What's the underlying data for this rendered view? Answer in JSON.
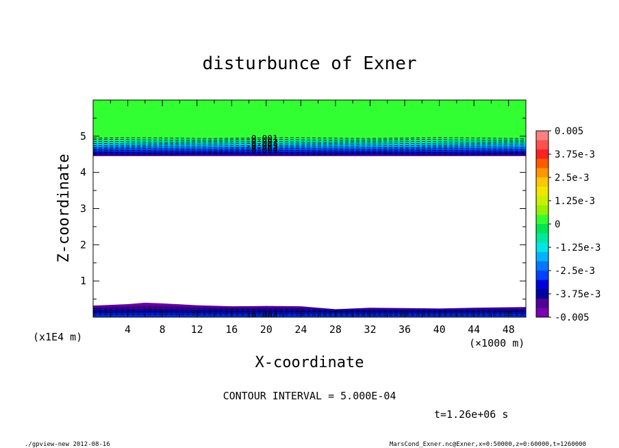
{
  "chart_data": {
    "type": "heatmap",
    "subtype": "filled-contour",
    "title": "disturbunce of Exner",
    "xlabel": "X-coordinate",
    "ylabel": "Z-coordinate",
    "x_unit": "(×1000 m)",
    "y_unit": "(x1E4 m)",
    "xlim": [
      0,
      50
    ],
    "ylim": [
      0,
      6
    ],
    "x_ticks": [
      4,
      8,
      12,
      16,
      20,
      24,
      28,
      32,
      36,
      40,
      44,
      48
    ],
    "y_ticks": [
      1,
      2,
      3,
      4,
      5
    ],
    "colorbar": {
      "range": [
        -0.005,
        0.005
      ],
      "tick_labels": [
        "0.005",
        "3.75e-3",
        "2.5e-3",
        "1.25e-3",
        "0",
        "-1.25e-3",
        "-2.5e-3",
        "-3.75e-3",
        "-0.005"
      ],
      "colors": [
        "#ff8080",
        "#ff5050",
        "#ff2020",
        "#ff5a00",
        "#ff9600",
        "#ffc800",
        "#f0e600",
        "#c8f000",
        "#96f000",
        "#32ff32",
        "#00e650",
        "#00e8a0",
        "#00e6e6",
        "#00b4ff",
        "#0078ff",
        "#0040ff",
        "#0000e0",
        "#0000a0",
        "#500096",
        "#7800b4"
      ]
    },
    "contour_labels": [
      {
        "text": "-0.001",
        "x": 19.5,
        "y": 4.92
      },
      {
        "text": "-0.002",
        "x": 19.5,
        "y": 4.82
      },
      {
        "text": "-0.003",
        "x": 19.5,
        "y": 4.72
      },
      {
        "text": "-0.004",
        "x": 19.5,
        "y": 4.62
      },
      {
        "text": "-0.004",
        "x": 19.5,
        "y": 0.02
      }
    ],
    "bands": {
      "upper_green_from_z": 4.98,
      "upper_gradient_z": [
        4.45,
        4.98
      ],
      "lower_profile": [
        {
          "x": 0,
          "z": 0.32
        },
        {
          "x": 4,
          "z": 0.36
        },
        {
          "x": 6,
          "z": 0.4
        },
        {
          "x": 8,
          "z": 0.38
        },
        {
          "x": 12,
          "z": 0.33
        },
        {
          "x": 16,
          "z": 0.3
        },
        {
          "x": 20,
          "z": 0.31
        },
        {
          "x": 24,
          "z": 0.3
        },
        {
          "x": 28,
          "z": 0.22
        },
        {
          "x": 32,
          "z": 0.26
        },
        {
          "x": 36,
          "z": 0.25
        },
        {
          "x": 40,
          "z": 0.24
        },
        {
          "x": 44,
          "z": 0.26
        },
        {
          "x": 50,
          "z": 0.28
        }
      ]
    }
  },
  "annotations": {
    "contour_interval": "CONTOUR INTERVAL = 5.000E-04",
    "time": "t=1.26e+06 s",
    "footer_left": "./gpview-new  2012-08-16",
    "footer_right": "MarsCond_Exner.nc@Exner,x=0:50000,z=0:60000,t=1260000"
  }
}
